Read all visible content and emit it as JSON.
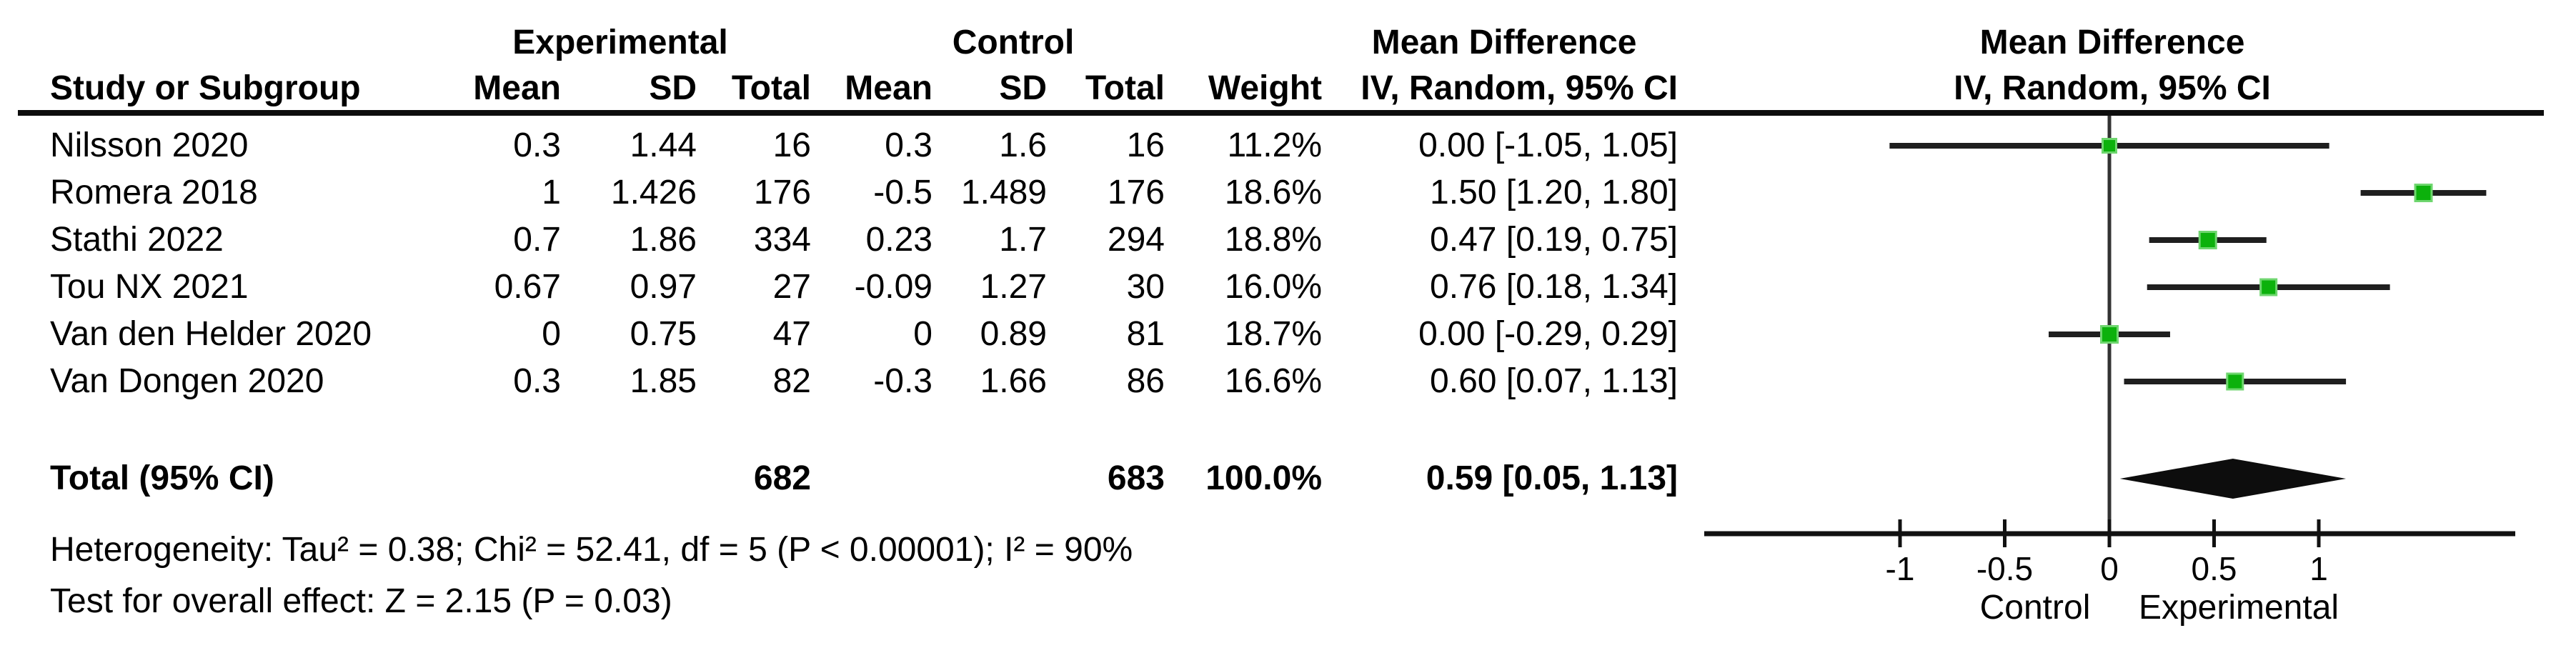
{
  "table": {
    "group_headers": {
      "experimental": "Experimental",
      "control": "Control",
      "mean_difference": "Mean Difference"
    },
    "column_headers": [
      "Study or Subgroup",
      "Mean",
      "SD",
      "Total",
      "Mean",
      "SD",
      "Total",
      "Weight",
      "IV, Random, 95% CI"
    ],
    "rows": [
      {
        "study": "Nilsson 2020",
        "exp_mean": "0.3",
        "exp_sd": "1.44",
        "exp_total": "16",
        "ctrl_mean": "0.3",
        "ctrl_sd": "1.6",
        "ctrl_total": "16",
        "weight": "11.2%",
        "ci_text": "0.00 [-1.05, 1.05]"
      },
      {
        "study": "Romera 2018",
        "exp_mean": "1",
        "exp_sd": "1.426",
        "exp_total": "176",
        "ctrl_mean": "-0.5",
        "ctrl_sd": "1.489",
        "ctrl_total": "176",
        "weight": "18.6%",
        "ci_text": "1.50 [1.20, 1.80]"
      },
      {
        "study": "Stathi 2022",
        "exp_mean": "0.7",
        "exp_sd": "1.86",
        "exp_total": "334",
        "ctrl_mean": "0.23",
        "ctrl_sd": "1.7",
        "ctrl_total": "294",
        "weight": "18.8%",
        "ci_text": "0.47 [0.19, 0.75]"
      },
      {
        "study": "Tou NX 2021",
        "exp_mean": "0.67",
        "exp_sd": "0.97",
        "exp_total": "27",
        "ctrl_mean": "-0.09",
        "ctrl_sd": "1.27",
        "ctrl_total": "30",
        "weight": "16.0%",
        "ci_text": "0.76 [0.18, 1.34]"
      },
      {
        "study": "Van den Helder 2020",
        "exp_mean": "0",
        "exp_sd": "0.75",
        "exp_total": "47",
        "ctrl_mean": "0",
        "ctrl_sd": "0.89",
        "ctrl_total": "81",
        "weight": "18.7%",
        "ci_text": "0.00 [-0.29, 0.29]"
      },
      {
        "study": "Van Dongen 2020",
        "exp_mean": "0.3",
        "exp_sd": "1.85",
        "exp_total": "82",
        "ctrl_mean": "-0.3",
        "ctrl_sd": "1.66",
        "ctrl_total": "86",
        "weight": "16.6%",
        "ci_text": "0.60 [0.07, 1.13]"
      }
    ],
    "total": {
      "label": "Total (95% CI)",
      "exp_total": "682",
      "ctrl_total": "683",
      "weight": "100.0%",
      "ci_text": "0.59 [0.05, 1.13]"
    },
    "heterogeneity": "Heterogeneity: Tau² = 0.38; Chi² = 52.41, df = 5 (P < 0.00001); I² = 90%",
    "overall_effect": "Test for overall effect: Z = 2.15 (P = 0.03)"
  },
  "plot": {
    "header_line1": "Mean Difference",
    "header_line2": "IV, Random, 95% CI",
    "left_label": "Control",
    "right_label": "Experimental",
    "tick_labels": [
      "-1",
      "-0.5",
      "0",
      "0.5",
      "1"
    ],
    "marker_color": "#0cb10c",
    "marker_border_color": "#6fd66f",
    "ci_line_color": "#1f1f1f",
    "diamond_color": "#0d0d0d",
    "axis_color": "#111111"
  },
  "chart_data": {
    "type": "forest",
    "title": "Mean Difference, IV, Random, 95% CI",
    "studies": [
      {
        "name": "Nilsson 2020",
        "md": 0.0,
        "ci_low": -1.05,
        "ci_high": 1.05,
        "weight_pct": 11.2
      },
      {
        "name": "Romera 2018",
        "md": 1.5,
        "ci_low": 1.2,
        "ci_high": 1.8,
        "weight_pct": 18.6
      },
      {
        "name": "Stathi 2022",
        "md": 0.47,
        "ci_low": 0.19,
        "ci_high": 0.75,
        "weight_pct": 18.8
      },
      {
        "name": "Tou NX 2021",
        "md": 0.76,
        "ci_low": 0.18,
        "ci_high": 1.34,
        "weight_pct": 16.0
      },
      {
        "name": "Van den Helder 2020",
        "md": 0.0,
        "ci_low": -0.29,
        "ci_high": 0.29,
        "weight_pct": 18.7
      },
      {
        "name": "Van Dongen 2020",
        "md": 0.6,
        "ci_low": 0.07,
        "ci_high": 1.13,
        "weight_pct": 16.6
      }
    ],
    "total": {
      "name": "Total (95% CI)",
      "md": 0.59,
      "ci_low": 0.05,
      "ci_high": 1.13,
      "weight_pct": 100.0
    },
    "ticks": [
      -1,
      -0.5,
      0,
      0.5,
      1
    ],
    "xlim": [
      -1.94,
      1.94
    ],
    "xlabel_left": "Control",
    "xlabel_right": "Experimental",
    "grid": false,
    "legend": false
  }
}
